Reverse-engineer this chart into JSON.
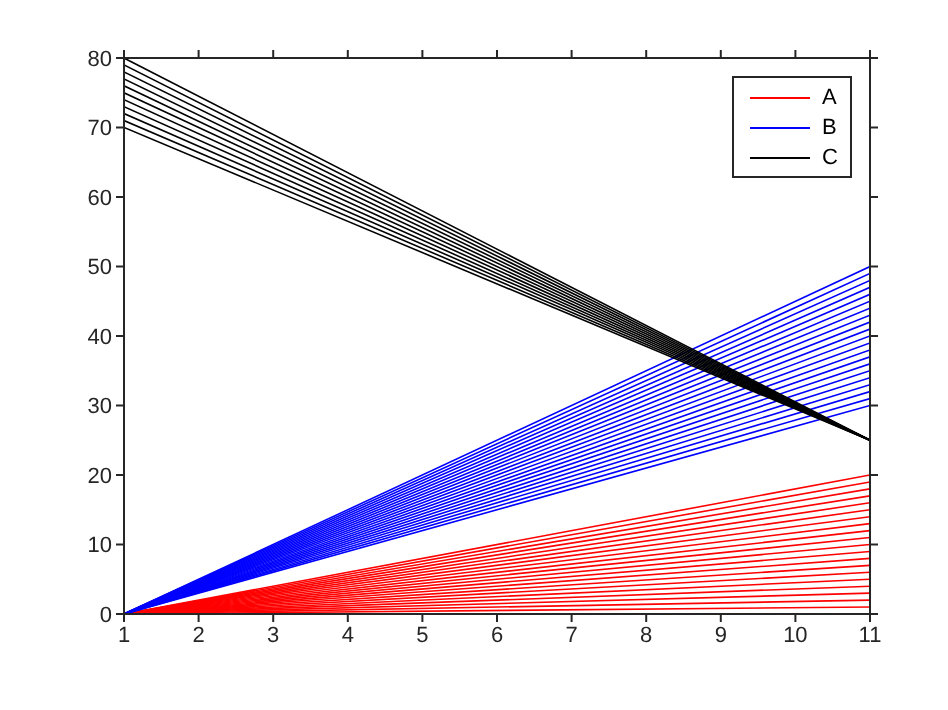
{
  "chart_data": {
    "type": "line",
    "x": [
      1,
      11
    ],
    "xlim": [
      1,
      11
    ],
    "xticks": [
      1,
      2,
      3,
      4,
      5,
      6,
      7,
      8,
      9,
      10,
      11
    ],
    "ylim": [
      0,
      80
    ],
    "yticks": [
      0,
      10,
      20,
      30,
      40,
      50,
      60,
      70,
      80
    ],
    "legend": "top right",
    "marker": "none",
    "line_style": "solid",
    "series": [
      {
        "name": "A",
        "color": "#ff0000",
        "values": [
          0,
          1
        ]
      },
      {
        "color": "#ff0000",
        "values": [
          0,
          2
        ]
      },
      {
        "color": "#ff0000",
        "values": [
          0,
          3
        ]
      },
      {
        "color": "#ff0000",
        "values": [
          0,
          4
        ]
      },
      {
        "color": "#ff0000",
        "values": [
          0,
          5
        ]
      },
      {
        "color": "#ff0000",
        "values": [
          0,
          6
        ]
      },
      {
        "color": "#ff0000",
        "values": [
          0,
          7
        ]
      },
      {
        "color": "#ff0000",
        "values": [
          0,
          8
        ]
      },
      {
        "color": "#ff0000",
        "values": [
          0,
          9
        ]
      },
      {
        "color": "#ff0000",
        "values": [
          0,
          10
        ]
      },
      {
        "color": "#ff0000",
        "values": [
          0,
          11
        ]
      },
      {
        "color": "#ff0000",
        "values": [
          0,
          12
        ]
      },
      {
        "color": "#ff0000",
        "values": [
          0,
          13
        ]
      },
      {
        "color": "#ff0000",
        "values": [
          0,
          14
        ]
      },
      {
        "color": "#ff0000",
        "values": [
          0,
          15
        ]
      },
      {
        "color": "#ff0000",
        "values": [
          0,
          16
        ]
      },
      {
        "color": "#ff0000",
        "values": [
          0,
          17
        ]
      },
      {
        "color": "#ff0000",
        "values": [
          0,
          18
        ]
      },
      {
        "color": "#ff0000",
        "values": [
          0,
          19
        ]
      },
      {
        "color": "#ff0000",
        "values": [
          0,
          20
        ]
      },
      {
        "name": "B",
        "color": "#0000ff",
        "values": [
          0,
          30
        ]
      },
      {
        "color": "#0000ff",
        "values": [
          0,
          31
        ]
      },
      {
        "color": "#0000ff",
        "values": [
          0,
          32
        ]
      },
      {
        "color": "#0000ff",
        "values": [
          0,
          33
        ]
      },
      {
        "color": "#0000ff",
        "values": [
          0,
          34
        ]
      },
      {
        "color": "#0000ff",
        "values": [
          0,
          35
        ]
      },
      {
        "color": "#0000ff",
        "values": [
          0,
          36
        ]
      },
      {
        "color": "#0000ff",
        "values": [
          0,
          37
        ]
      },
      {
        "color": "#0000ff",
        "values": [
          0,
          38
        ]
      },
      {
        "color": "#0000ff",
        "values": [
          0,
          39
        ]
      },
      {
        "color": "#0000ff",
        "values": [
          0,
          40
        ]
      },
      {
        "color": "#0000ff",
        "values": [
          0,
          41
        ]
      },
      {
        "color": "#0000ff",
        "values": [
          0,
          42
        ]
      },
      {
        "color": "#0000ff",
        "values": [
          0,
          43
        ]
      },
      {
        "color": "#0000ff",
        "values": [
          0,
          44
        ]
      },
      {
        "color": "#0000ff",
        "values": [
          0,
          45
        ]
      },
      {
        "color": "#0000ff",
        "values": [
          0,
          46
        ]
      },
      {
        "color": "#0000ff",
        "values": [
          0,
          47
        ]
      },
      {
        "color": "#0000ff",
        "values": [
          0,
          48
        ]
      },
      {
        "color": "#0000ff",
        "values": [
          0,
          49
        ]
      },
      {
        "color": "#0000ff",
        "values": [
          0,
          50
        ]
      },
      {
        "name": "C",
        "color": "#000000",
        "values": [
          70,
          25
        ]
      },
      {
        "color": "#000000",
        "values": [
          71,
          25
        ]
      },
      {
        "color": "#000000",
        "values": [
          72,
          25
        ]
      },
      {
        "color": "#000000",
        "values": [
          73,
          25
        ]
      },
      {
        "color": "#000000",
        "values": [
          74,
          25
        ]
      },
      {
        "color": "#000000",
        "values": [
          75,
          25
        ]
      },
      {
        "color": "#000000",
        "values": [
          76,
          25
        ]
      },
      {
        "color": "#000000",
        "values": [
          77,
          25
        ]
      },
      {
        "color": "#000000",
        "values": [
          78,
          25
        ]
      },
      {
        "color": "#000000",
        "values": [
          79,
          25
        ]
      },
      {
        "color": "#000000",
        "values": [
          80,
          25
        ]
      }
    ]
  }
}
